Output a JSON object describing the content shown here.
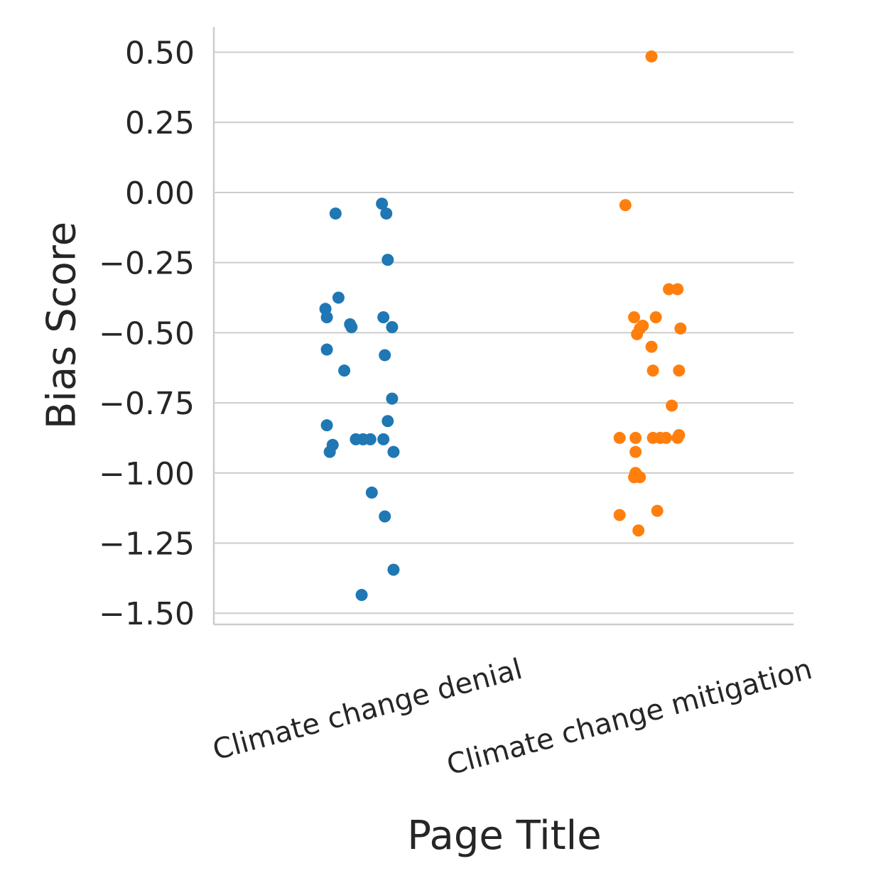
{
  "chart_data": {
    "type": "scatter",
    "style": "strip",
    "xlabel": "Page Title",
    "ylabel": "Bias Score",
    "categories": [
      "Climate change denial",
      "Climate change mitigation"
    ],
    "ylim": [
      -1.54,
      0.59
    ],
    "yticks": [
      0.5,
      0.25,
      0.0,
      -0.25,
      -0.5,
      -0.75,
      -1.0,
      -1.25,
      -1.5
    ],
    "ytick_labels": [
      "0.50",
      "0.25",
      "0.00",
      "−0.25",
      "−0.50",
      "−0.75",
      "−1.00",
      "−1.25",
      "−1.50"
    ],
    "grid": true,
    "colors": [
      "#1f77b4",
      "#ff7f0e"
    ],
    "series": [
      {
        "values": [
          -0.04,
          -0.075,
          -0.075,
          -0.24,
          -0.375,
          -0.415,
          -0.445,
          -0.445,
          -0.47,
          -0.48,
          -0.48,
          -0.56,
          -0.58,
          -0.635,
          -0.735,
          -0.815,
          -0.83,
          -0.88,
          -0.88,
          -0.88,
          -0.88,
          -0.9,
          -0.925,
          -0.925,
          -1.07,
          -1.155,
          -1.345,
          -1.435
        ],
        "jitter": [
          0.08,
          -0.08,
          0.095,
          0.1,
          -0.07,
          -0.115,
          -0.11,
          0.085,
          -0.03,
          -0.025,
          0.115,
          -0.11,
          0.09,
          -0.05,
          0.115,
          0.1,
          -0.11,
          -0.01,
          0.015,
          0.04,
          0.085,
          -0.09,
          -0.1,
          0.12,
          0.045,
          0.09,
          0.12,
          0.01
        ]
      },
      {
        "values": [
          0.485,
          -0.045,
          -0.345,
          -0.345,
          -0.445,
          -0.445,
          -0.475,
          -0.485,
          -0.485,
          -0.505,
          -0.55,
          -0.635,
          -0.635,
          -0.76,
          -0.865,
          -0.875,
          -0.875,
          -0.875,
          -0.875,
          -0.875,
          -0.875,
          -0.925,
          -1.0,
          -1.015,
          -1.015,
          -1.135,
          -1.15,
          -1.205
        ],
        "jitter": [
          0.01,
          -0.08,
          0.07,
          0.1,
          -0.05,
          0.025,
          -0.02,
          0.11,
          -0.03,
          -0.04,
          0.01,
          0.015,
          0.105,
          0.08,
          0.105,
          -0.1,
          -0.045,
          0.015,
          0.04,
          0.06,
          0.1,
          -0.045,
          -0.045,
          -0.05,
          -0.03,
          0.03,
          -0.1,
          -0.035
        ]
      }
    ]
  }
}
